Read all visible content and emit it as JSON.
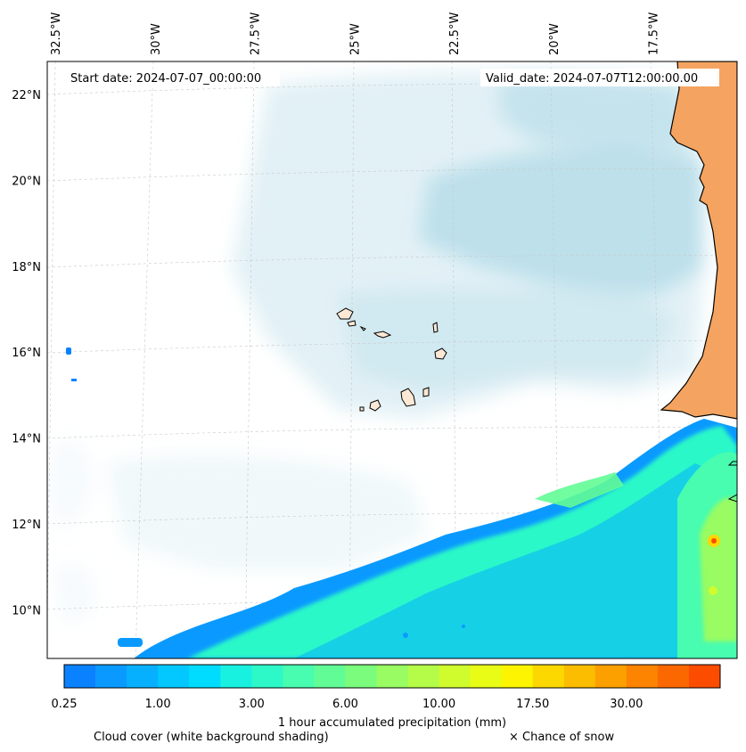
{
  "map": {
    "start_date_label": "Start date: 2024-07-07_00:00:00",
    "valid_date_label": "Valid_date: 2024-07-07T12:00:00.00",
    "lon_ticks": [
      {
        "label": "32.5°W",
        "value": -32.5
      },
      {
        "label": "30°W",
        "value": -30.0
      },
      {
        "label": "27.5°W",
        "value": -27.5
      },
      {
        "label": "25°W",
        "value": -25.0
      },
      {
        "label": "22.5°W",
        "value": -22.5
      },
      {
        "label": "20°W",
        "value": -20.0
      },
      {
        "label": "17.5°W",
        "value": -17.5
      }
    ],
    "lat_ticks": [
      {
        "label": "22°N",
        "value": 22
      },
      {
        "label": "20°N",
        "value": 20
      },
      {
        "label": "18°N",
        "value": 18
      },
      {
        "label": "16°N",
        "value": 16
      },
      {
        "label": "14°N",
        "value": 14
      },
      {
        "label": "12°N",
        "value": 12
      },
      {
        "label": "10°N",
        "value": 10
      }
    ],
    "colors": {
      "land": "#f4a460",
      "island_fill": "#fde8d6",
      "cloud": "#add8e6"
    }
  },
  "colorbar": {
    "tick_labels": [
      "0.25",
      "1.00",
      "3.00",
      "6.00",
      "10.00",
      "17.50",
      "30.00"
    ],
    "colors": [
      "#0a82ff",
      "#0a9aff",
      "#06b0ff",
      "#02c8ff",
      "#00dcff",
      "#18f0e0",
      "#2cf8c8",
      "#48fcb0",
      "#62fc96",
      "#7cfc7c",
      "#98fc62",
      "#b4fc48",
      "#d0fc2e",
      "#e8fc16",
      "#fcf400",
      "#fcd800",
      "#fcbc00",
      "#fca000",
      "#fc8400",
      "#fc6800",
      "#fc4c00"
    ],
    "label": "1 hour accumulated precipitation (mm)"
  },
  "legend": {
    "cloud_cover": "Cloud cover (white background shading)",
    "snow": "× Chance of snow"
  }
}
